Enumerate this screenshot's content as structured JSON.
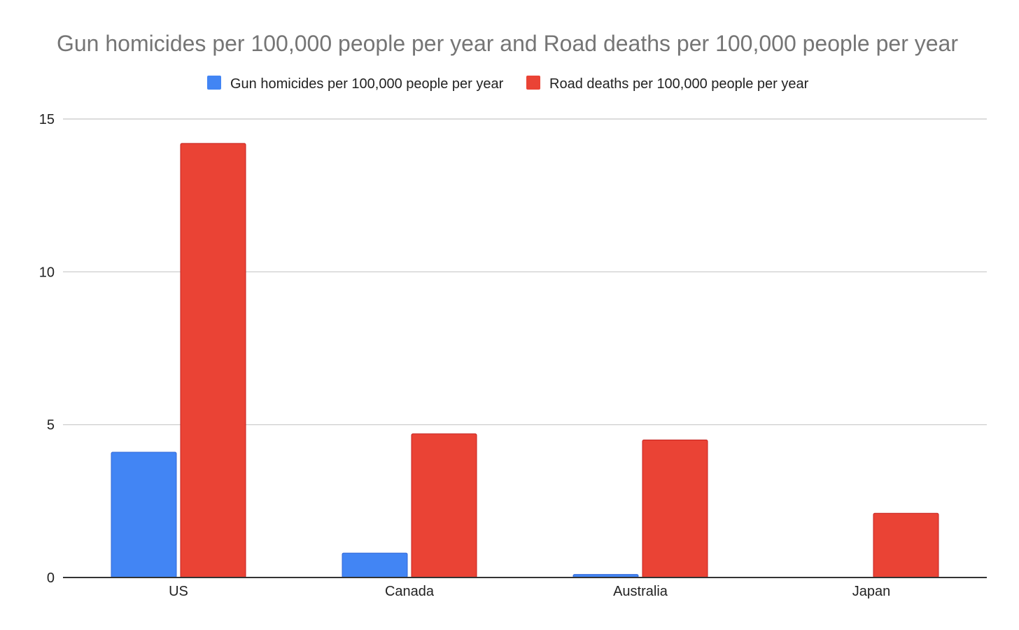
{
  "chart_data": {
    "type": "bar",
    "title": "Gun homicides per 100,000 people per year and Road deaths per 100,000 people per year",
    "xlabel": "",
    "ylabel": "",
    "categories": [
      "US",
      "Canada",
      "Australia",
      "Japan"
    ],
    "series": [
      {
        "name": "Gun homicides per 100,000 people per year",
        "color": "#4285F4",
        "border": "#3367D6",
        "values": [
          4.1,
          0.8,
          0.1,
          0.0
        ]
      },
      {
        "name": "Road deaths per 100,000 people per year",
        "color": "#EA4335",
        "border": "#C5221F",
        "values": [
          14.2,
          4.7,
          4.5,
          2.1
        ]
      }
    ],
    "ylim": [
      0,
      15
    ],
    "yticks": [
      0,
      5,
      10,
      15
    ],
    "grid": true,
    "legend": "top"
  }
}
